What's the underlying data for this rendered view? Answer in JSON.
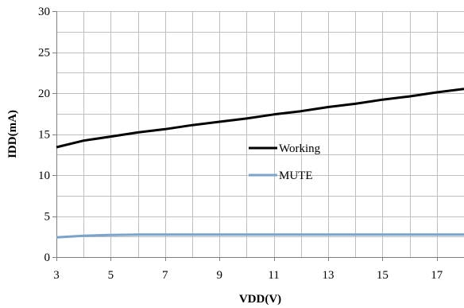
{
  "chart_data": {
    "type": "line",
    "title": "",
    "xlabel": "VDD(V)",
    "ylabel": "IDD(mA)",
    "xlim": [
      3,
      18
    ],
    "ylim": [
      0,
      30
    ],
    "x_ticks": [
      "3",
      "5",
      "7",
      "9",
      "11",
      "13",
      "15",
      "17"
    ],
    "y_ticks": [
      "0",
      "5",
      "10",
      "15",
      "20",
      "25",
      "30"
    ],
    "grid": true,
    "legend": "center-right",
    "series": [
      {
        "name": "Working",
        "color": "#000000",
        "x": [
          3,
          4,
          5,
          6,
          7,
          8,
          9,
          10,
          11,
          12,
          13,
          14,
          15,
          16,
          17,
          18
        ],
        "y": [
          13.4,
          14.2,
          14.7,
          15.2,
          15.6,
          16.1,
          16.5,
          16.9,
          17.4,
          17.8,
          18.3,
          18.7,
          19.2,
          19.6,
          20.1,
          20.5
        ]
      },
      {
        "name": "MUTE",
        "color": "#7aa3cc",
        "x": [
          3,
          4,
          5,
          6,
          7,
          8,
          9,
          10,
          11,
          12,
          13,
          14,
          15,
          16,
          17,
          18
        ],
        "y": [
          2.4,
          2.6,
          2.7,
          2.75,
          2.75,
          2.75,
          2.75,
          2.75,
          2.75,
          2.75,
          2.75,
          2.75,
          2.75,
          2.75,
          2.75,
          2.75
        ]
      }
    ]
  }
}
